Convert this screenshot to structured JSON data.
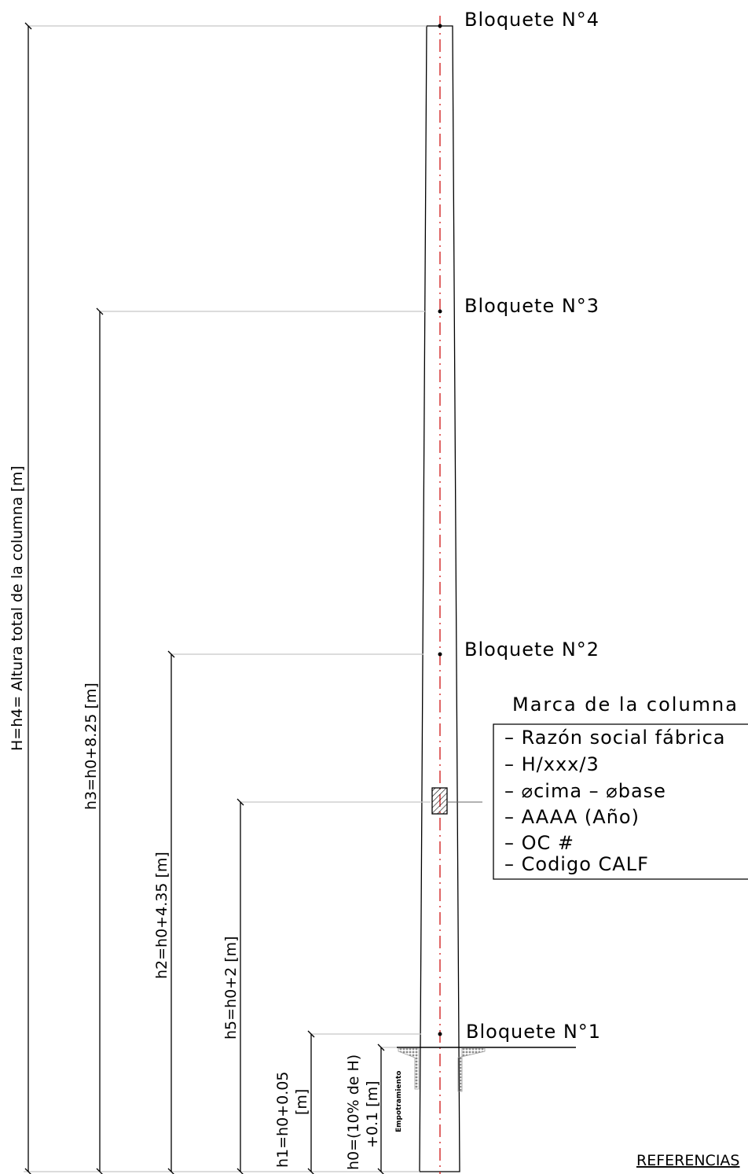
{
  "dimensions": {
    "H": "H=h4= Altura total de la columna [m]",
    "h3": "h3=h0+8.25 [m]",
    "h2": "h2=h0+4.35 [m]",
    "h5": "h5=h0+2 [m]",
    "h1_line1": "h1=h0+0.05",
    "h1_line2": "[m]",
    "h0_line1": "h0=(10% de H)",
    "h0_line2": "+0.1 [m]"
  },
  "embedment_label": "Empotramiento",
  "blocks": {
    "b4": "Bloquete N°4",
    "b3": "Bloquete N°3",
    "b2": "Bloquete N°2",
    "b1": "Bloquete N°1"
  },
  "marca": {
    "title": "Marca de la columna",
    "items": [
      "– Razón social fábrica",
      "– H/xxx/3",
      "– ⌀cima – ⌀base",
      "– AAAA (Año)",
      "– OC #",
      "– Codigo CALF"
    ]
  },
  "references": "REFERENCIAS",
  "colors": {
    "line": "#000000",
    "leader": "#c0c0c0",
    "axis": "#cc0000",
    "soil": "#9a9a9a"
  }
}
